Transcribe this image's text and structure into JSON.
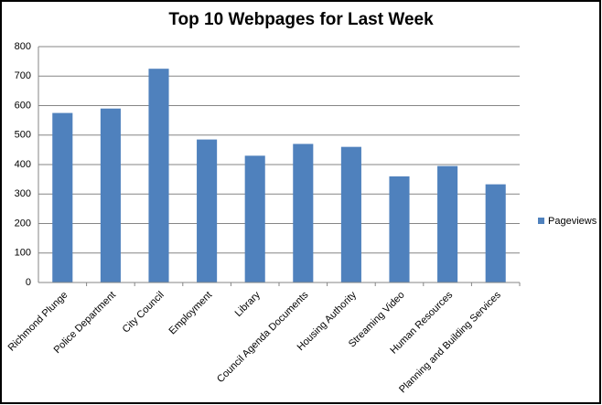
{
  "chart_data": {
    "type": "bar",
    "title": "Top 10 Webpages for Last Week",
    "categories": [
      "Richmond Plunge",
      "Police Department",
      "City Council",
      "Employment",
      "Library",
      "Council Agenda Documents",
      "Housing Authority",
      "Streaming Video",
      "Human Resources",
      "Planning and Building Services"
    ],
    "series": [
      {
        "name": "Pageviews",
        "color": "#4f81bd",
        "values": [
          575,
          590,
          725,
          485,
          430,
          470,
          460,
          360,
          395,
          333
        ]
      }
    ],
    "ylim": [
      0,
      800
    ],
    "yticks": [
      0,
      100,
      200,
      300,
      400,
      500,
      600,
      700,
      800
    ],
    "grid": true,
    "legend": "right"
  }
}
